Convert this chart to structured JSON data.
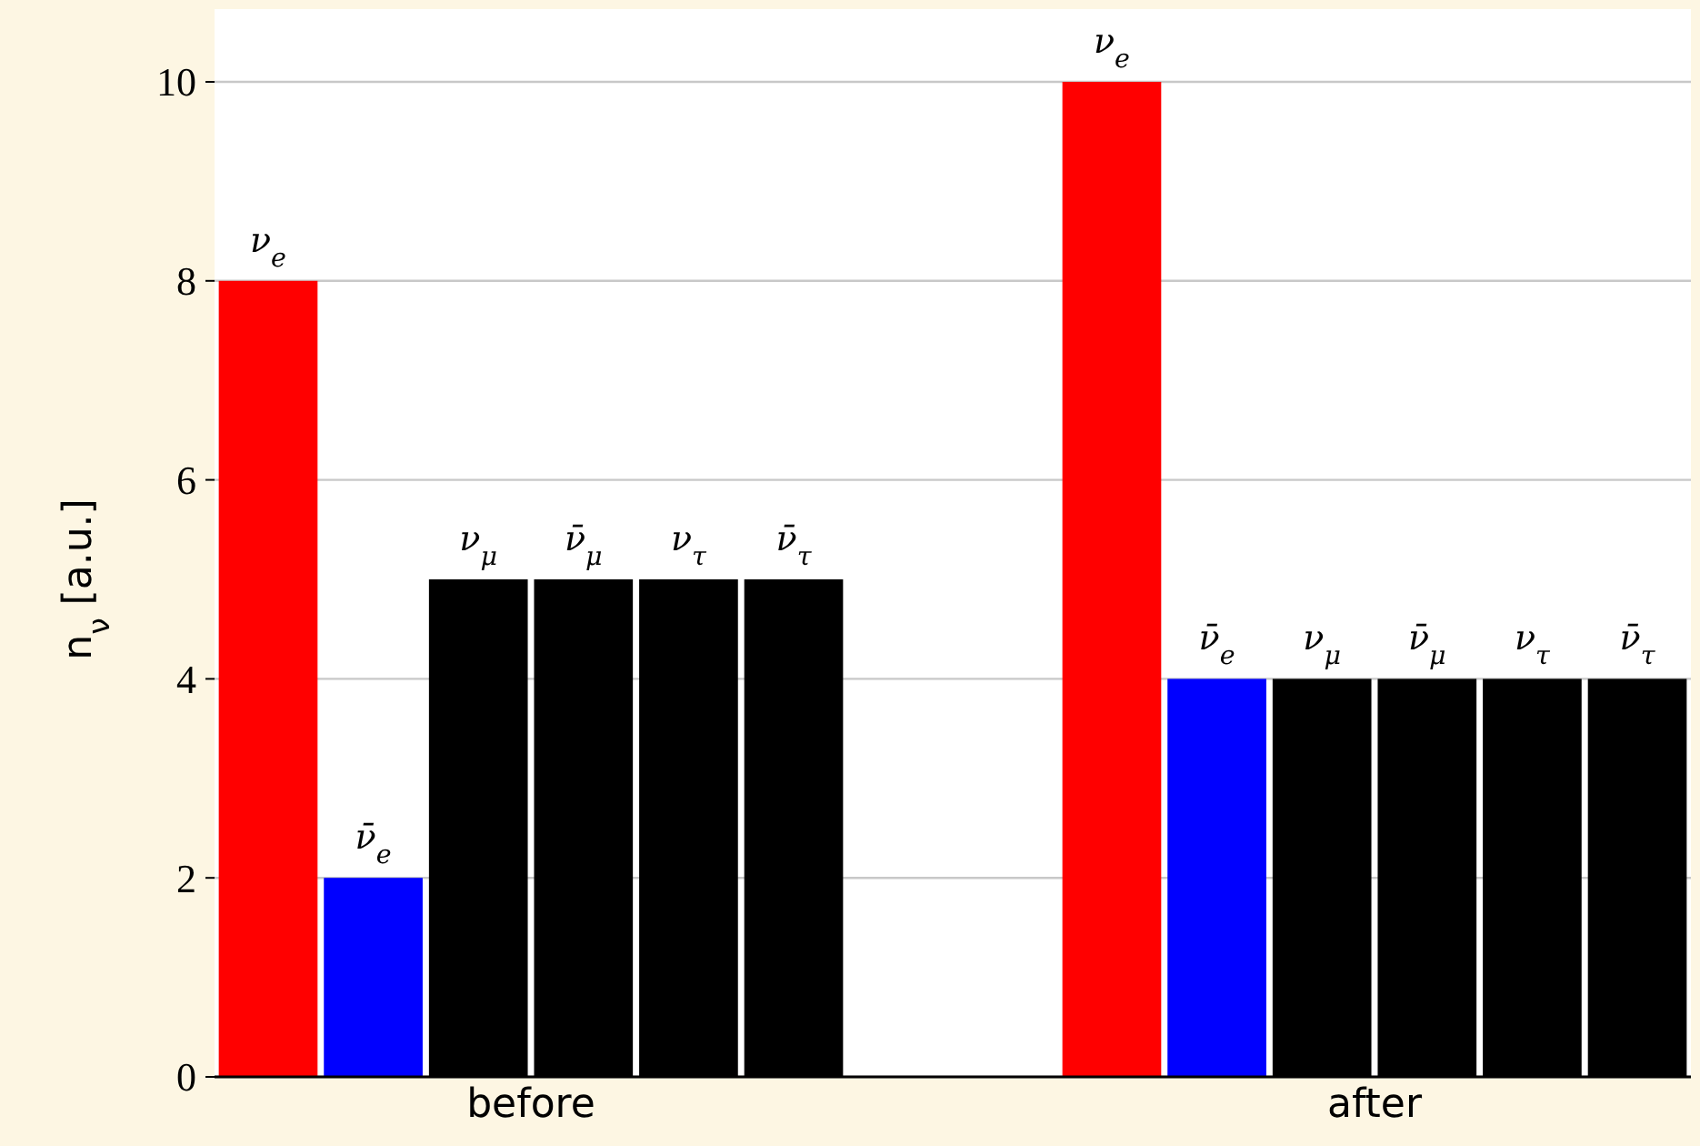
{
  "chart_data": {
    "type": "bar",
    "ylabel": "n$_{ν}$ [a.u.]",
    "categories": [
      "before",
      "after"
    ],
    "series": [
      {
        "name": "ν$_{e}$",
        "color": "#ff0000",
        "values": [
          8,
          10
        ]
      },
      {
        "name": "ν̄$_{e}$",
        "color": "#0000ff",
        "values": [
          2,
          4
        ]
      },
      {
        "name": "ν$_{μ}$",
        "color": "#000000",
        "values": [
          5,
          4
        ]
      },
      {
        "name": "ν̄$_{μ}$",
        "color": "#000000",
        "values": [
          5,
          4
        ]
      },
      {
        "name": "ν$_{τ}$",
        "color": "#000000",
        "values": [
          5,
          4
        ]
      },
      {
        "name": "ν̄$_{τ}$",
        "color": "#000000",
        "values": [
          5,
          4
        ]
      }
    ],
    "ylim": [
      0,
      10
    ],
    "yticks": [
      0,
      2,
      4,
      6,
      8,
      10
    ],
    "grid": "y"
  }
}
